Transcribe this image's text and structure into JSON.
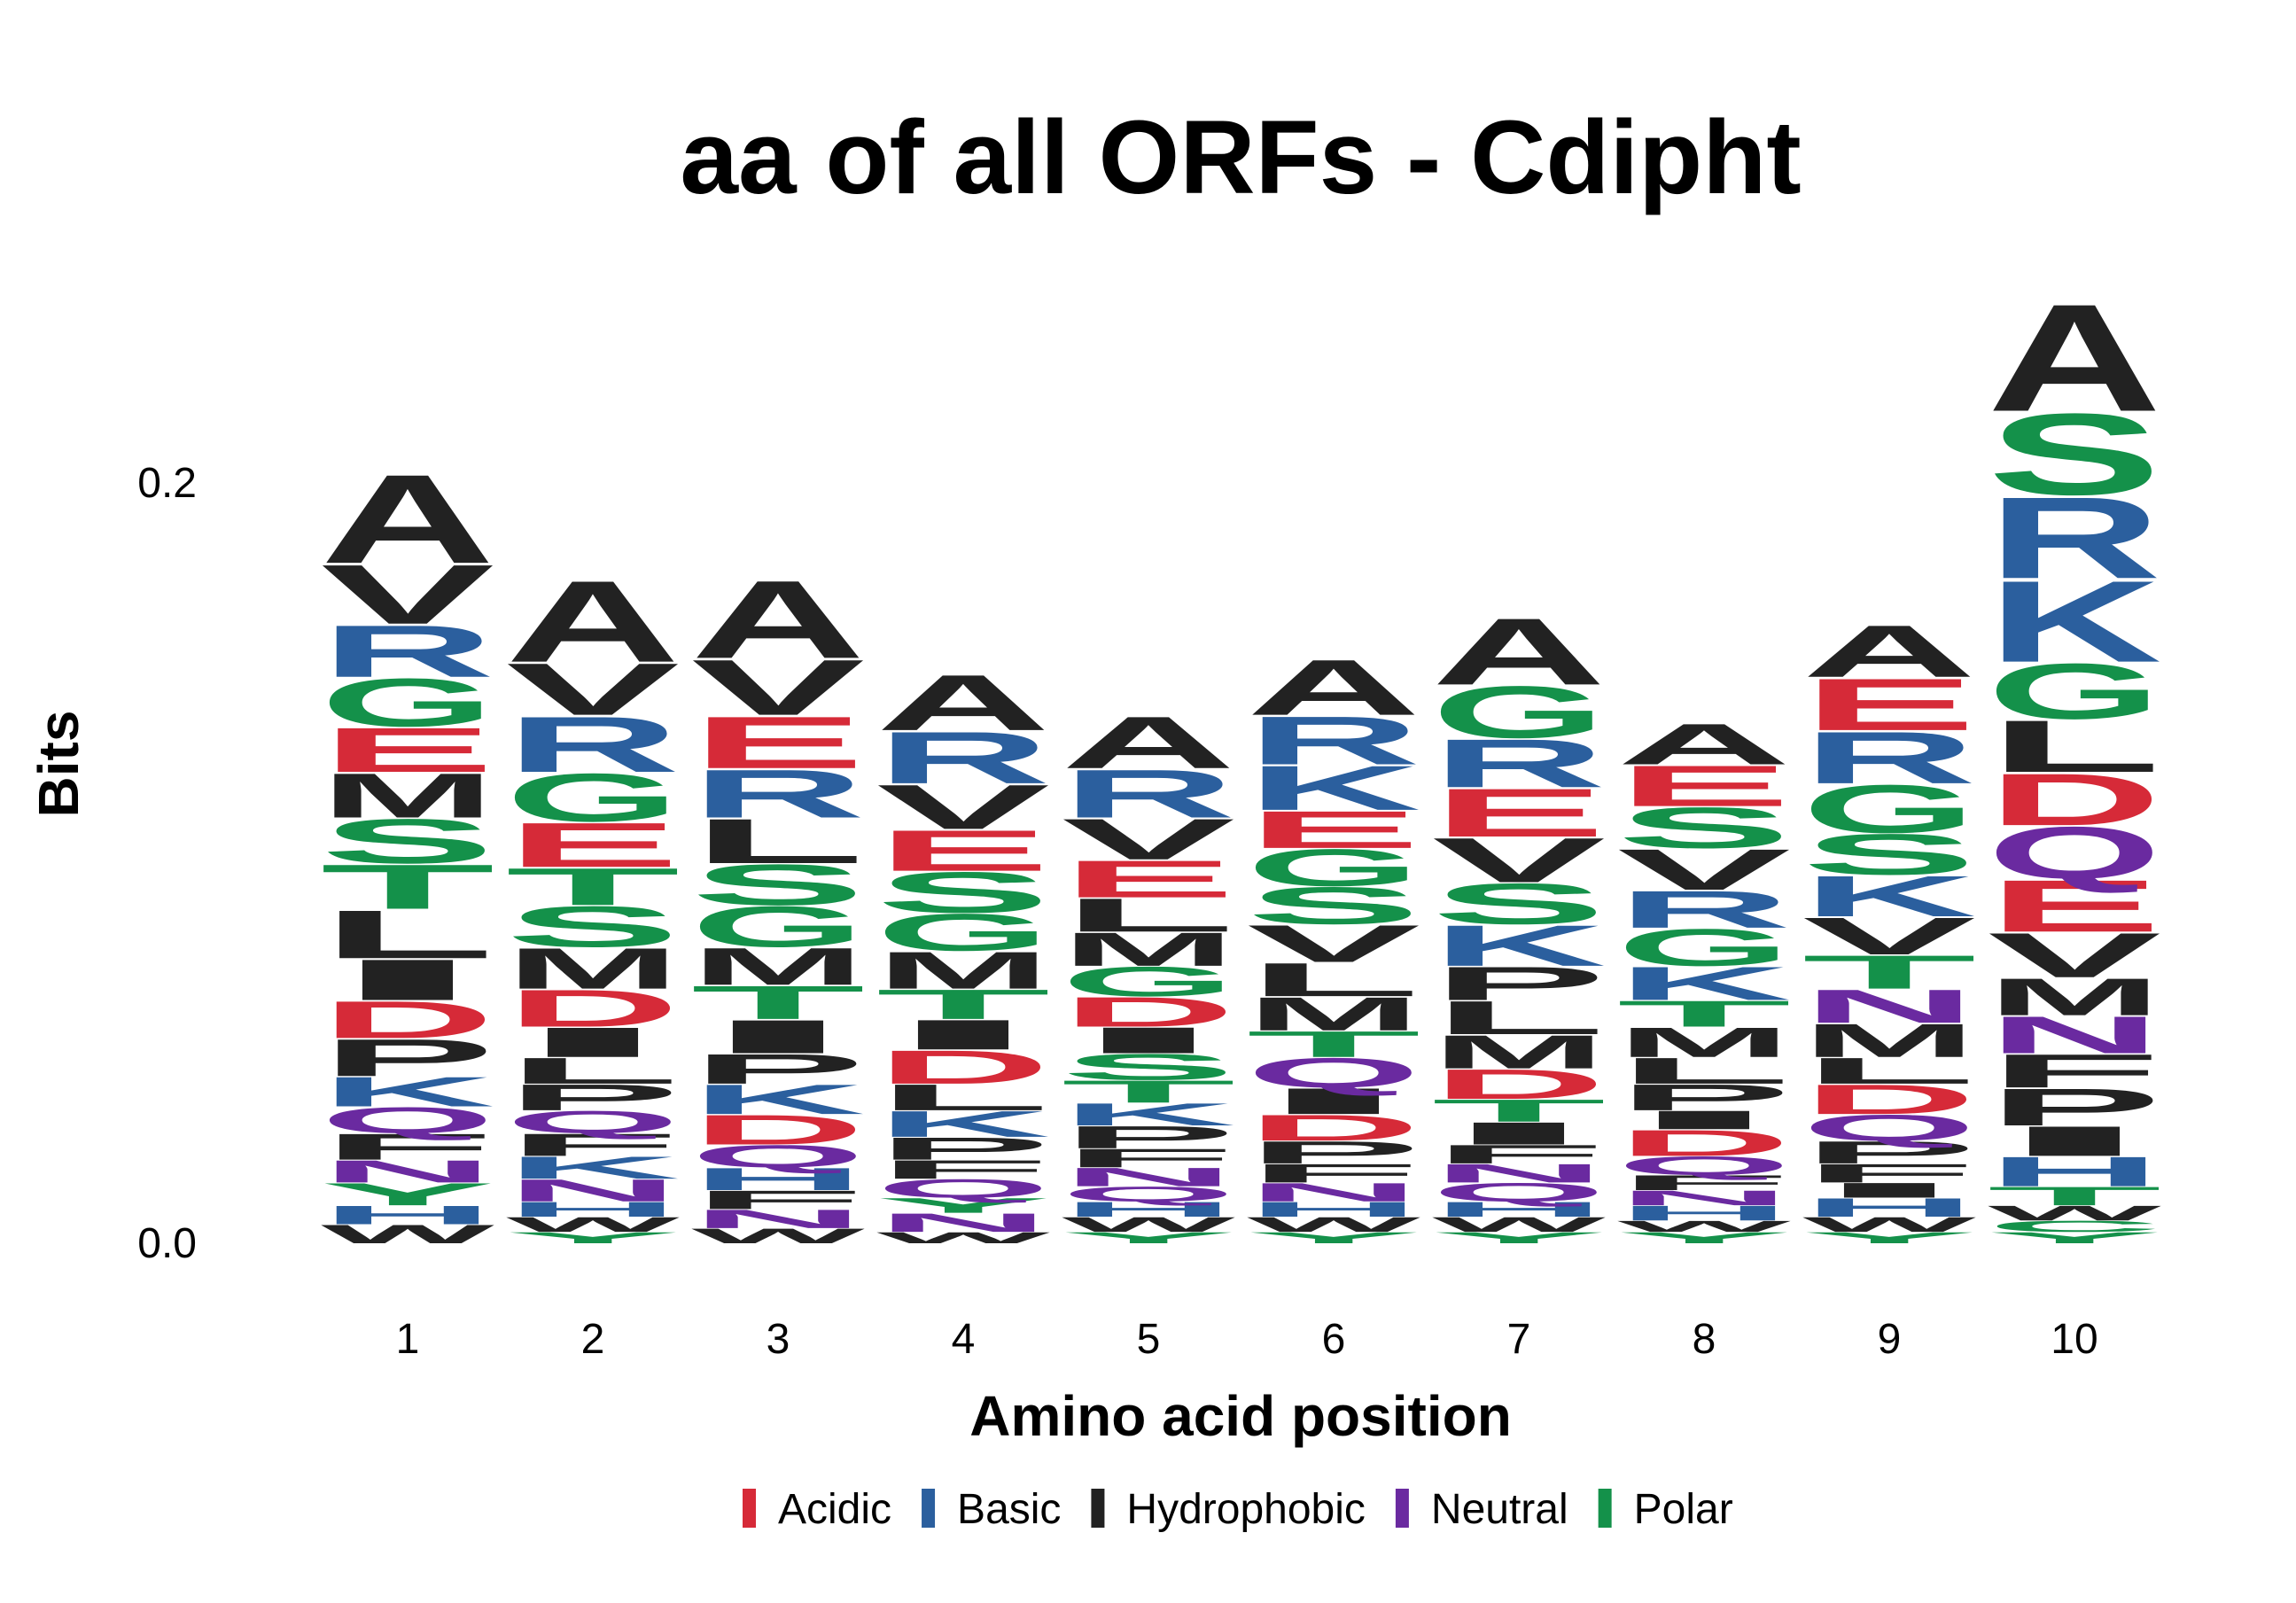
{
  "chart_data": {
    "type": "sequence-logo",
    "title": "aa of all ORFs - Cdipht",
    "xlabel": "Amino acid position",
    "ylabel": "Bits",
    "y_ticks": [
      "0.0",
      "0.2"
    ],
    "y_tick_values": [
      0.0,
      0.2
    ],
    "ylim": [
      0.0,
      0.2
    ],
    "x_tick_labels": [
      "1",
      "2",
      "3",
      "4",
      "5",
      "6",
      "7",
      "8",
      "9",
      "10"
    ],
    "grid": false,
    "legend_placement": "bottom",
    "legend": [
      {
        "name": "Acidic",
        "color": "#d62a38"
      },
      {
        "name": "Basic",
        "color": "#2b5f9e"
      },
      {
        "name": "Hydrophobic",
        "color": "#222222"
      },
      {
        "name": "Neutral",
        "color": "#6a2aa0"
      },
      {
        "name": "Polar",
        "color": "#14914a"
      }
    ],
    "class_of_letter": {
      "D": "Acidic",
      "E": "Acidic",
      "K": "Basic",
      "R": "Basic",
      "H": "Basic",
      "A": "Hydrophobic",
      "V": "Hydrophobic",
      "L": "Hydrophobic",
      "I": "Hydrophobic",
      "M": "Hydrophobic",
      "P": "Hydrophobic",
      "F": "Hydrophobic",
      "W": "Hydrophobic",
      "Q": "Neutral",
      "N": "Neutral",
      "S": "Polar",
      "G": "Polar",
      "T": "Polar",
      "Y": "Polar",
      "C": "Polar"
    },
    "positions": [
      {
        "position": "1",
        "letters": [
          {
            "aa": "W",
            "bits": 0.005
          },
          {
            "aa": "H",
            "bits": 0.005
          },
          {
            "aa": "Y",
            "bits": 0.006
          },
          {
            "aa": "N",
            "bits": 0.006
          },
          {
            "aa": "F",
            "bits": 0.007
          },
          {
            "aa": "Q",
            "bits": 0.007
          },
          {
            "aa": "K",
            "bits": 0.008
          },
          {
            "aa": "P",
            "bits": 0.01
          },
          {
            "aa": "D",
            "bits": 0.01
          },
          {
            "aa": "I",
            "bits": 0.011
          },
          {
            "aa": "L",
            "bits": 0.013
          },
          {
            "aa": "T",
            "bits": 0.012
          },
          {
            "aa": "S",
            "bits": 0.012
          },
          {
            "aa": "M",
            "bits": 0.012
          },
          {
            "aa": "E",
            "bits": 0.012
          },
          {
            "aa": "G",
            "bits": 0.013
          },
          {
            "aa": "R",
            "bits": 0.014
          },
          {
            "aa": "V",
            "bits": 0.016
          },
          {
            "aa": "A",
            "bits": 0.024
          }
        ]
      },
      {
        "position": "2",
        "letters": [
          {
            "aa": "Y",
            "bits": 0.003
          },
          {
            "aa": "W",
            "bits": 0.004
          },
          {
            "aa": "H",
            "bits": 0.004
          },
          {
            "aa": "N",
            "bits": 0.006
          },
          {
            "aa": "K",
            "bits": 0.006
          },
          {
            "aa": "F",
            "bits": 0.006
          },
          {
            "aa": "Q",
            "bits": 0.006
          },
          {
            "aa": "P",
            "bits": 0.007
          },
          {
            "aa": "L",
            "bits": 0.007
          },
          {
            "aa": "I",
            "bits": 0.008
          },
          {
            "aa": "D",
            "bits": 0.01
          },
          {
            "aa": "M",
            "bits": 0.011
          },
          {
            "aa": "S",
            "bits": 0.011
          },
          {
            "aa": "T",
            "bits": 0.01
          },
          {
            "aa": "E",
            "bits": 0.012
          },
          {
            "aa": "G",
            "bits": 0.013
          },
          {
            "aa": "R",
            "bits": 0.015
          },
          {
            "aa": "V",
            "bits": 0.014
          },
          {
            "aa": "A",
            "bits": 0.022
          }
        ]
      },
      {
        "position": "3",
        "letters": [
          {
            "aa": "W",
            "bits": 0.004
          },
          {
            "aa": "N",
            "bits": 0.005
          },
          {
            "aa": "F",
            "bits": 0.005
          },
          {
            "aa": "H",
            "bits": 0.006
          },
          {
            "aa": "Q",
            "bits": 0.006
          },
          {
            "aa": "D",
            "bits": 0.008
          },
          {
            "aa": "K",
            "bits": 0.008
          },
          {
            "aa": "P",
            "bits": 0.008
          },
          {
            "aa": "I",
            "bits": 0.009
          },
          {
            "aa": "T",
            "bits": 0.009
          },
          {
            "aa": "M",
            "bits": 0.01
          },
          {
            "aa": "G",
            "bits": 0.011
          },
          {
            "aa": "S",
            "bits": 0.011
          },
          {
            "aa": "L",
            "bits": 0.012
          },
          {
            "aa": "R",
            "bits": 0.013
          },
          {
            "aa": "E",
            "bits": 0.014
          },
          {
            "aa": "V",
            "bits": 0.015
          },
          {
            "aa": "A",
            "bits": 0.021
          }
        ]
      },
      {
        "position": "4",
        "letters": [
          {
            "aa": "W",
            "bits": 0.003
          },
          {
            "aa": "N",
            "bits": 0.005
          },
          {
            "aa": "Y",
            "bits": 0.004
          },
          {
            "aa": "Q",
            "bits": 0.005
          },
          {
            "aa": "F",
            "bits": 0.005
          },
          {
            "aa": "P",
            "bits": 0.006
          },
          {
            "aa": "K",
            "bits": 0.007
          },
          {
            "aa": "L",
            "bits": 0.007
          },
          {
            "aa": "D",
            "bits": 0.009
          },
          {
            "aa": "I",
            "bits": 0.008
          },
          {
            "aa": "T",
            "bits": 0.008
          },
          {
            "aa": "M",
            "bits": 0.01
          },
          {
            "aa": "G",
            "bits": 0.01
          },
          {
            "aa": "S",
            "bits": 0.011
          },
          {
            "aa": "E",
            "bits": 0.011
          },
          {
            "aa": "V",
            "bits": 0.012
          },
          {
            "aa": "R",
            "bits": 0.014
          },
          {
            "aa": "A",
            "bits": 0.015
          }
        ]
      },
      {
        "position": "5",
        "letters": [
          {
            "aa": "Y",
            "bits": 0.003
          },
          {
            "aa": "W",
            "bits": 0.004
          },
          {
            "aa": "H",
            "bits": 0.004
          },
          {
            "aa": "Q",
            "bits": 0.004
          },
          {
            "aa": "N",
            "bits": 0.005
          },
          {
            "aa": "F",
            "bits": 0.005
          },
          {
            "aa": "P",
            "bits": 0.006
          },
          {
            "aa": "K",
            "bits": 0.006
          },
          {
            "aa": "T",
            "bits": 0.006
          },
          {
            "aa": "S",
            "bits": 0.007
          },
          {
            "aa": "I",
            "bits": 0.007
          },
          {
            "aa": "D",
            "bits": 0.008
          },
          {
            "aa": "G",
            "bits": 0.008
          },
          {
            "aa": "M",
            "bits": 0.009
          },
          {
            "aa": "L",
            "bits": 0.009
          },
          {
            "aa": "E",
            "bits": 0.01
          },
          {
            "aa": "V",
            "bits": 0.011
          },
          {
            "aa": "R",
            "bits": 0.013
          },
          {
            "aa": "A",
            "bits": 0.014
          }
        ]
      },
      {
        "position": "6",
        "letters": [
          {
            "aa": "Y",
            "bits": 0.003
          },
          {
            "aa": "W",
            "bits": 0.004
          },
          {
            "aa": "H",
            "bits": 0.004
          },
          {
            "aa": "N",
            "bits": 0.005
          },
          {
            "aa": "F",
            "bits": 0.005
          },
          {
            "aa": "P",
            "bits": 0.006
          },
          {
            "aa": "D",
            "bits": 0.007
          },
          {
            "aa": "I",
            "bits": 0.007
          },
          {
            "aa": "Q",
            "bits": 0.008
          },
          {
            "aa": "T",
            "bits": 0.007
          },
          {
            "aa": "M",
            "bits": 0.009
          },
          {
            "aa": "L",
            "bits": 0.009
          },
          {
            "aa": "V",
            "bits": 0.01
          },
          {
            "aa": "S",
            "bits": 0.01
          },
          {
            "aa": "G",
            "bits": 0.01
          },
          {
            "aa": "E",
            "bits": 0.01
          },
          {
            "aa": "K",
            "bits": 0.012
          },
          {
            "aa": "R",
            "bits": 0.013
          },
          {
            "aa": "A",
            "bits": 0.015
          }
        ]
      },
      {
        "position": "7",
        "letters": [
          {
            "aa": "Y",
            "bits": 0.003
          },
          {
            "aa": "W",
            "bits": 0.004
          },
          {
            "aa": "H",
            "bits": 0.004
          },
          {
            "aa": "Q",
            "bits": 0.005
          },
          {
            "aa": "N",
            "bits": 0.005
          },
          {
            "aa": "F",
            "bits": 0.005
          },
          {
            "aa": "I",
            "bits": 0.006
          },
          {
            "aa": "T",
            "bits": 0.006
          },
          {
            "aa": "D",
            "bits": 0.008
          },
          {
            "aa": "M",
            "bits": 0.009
          },
          {
            "aa": "L",
            "bits": 0.009
          },
          {
            "aa": "P",
            "bits": 0.009
          },
          {
            "aa": "K",
            "bits": 0.011
          },
          {
            "aa": "S",
            "bits": 0.011
          },
          {
            "aa": "V",
            "bits": 0.012
          },
          {
            "aa": "E",
            "bits": 0.013
          },
          {
            "aa": "R",
            "bits": 0.013
          },
          {
            "aa": "G",
            "bits": 0.014
          },
          {
            "aa": "A",
            "bits": 0.018
          }
        ]
      },
      {
        "position": "8",
        "letters": [
          {
            "aa": "Y",
            "bits": 0.003
          },
          {
            "aa": "W",
            "bits": 0.003
          },
          {
            "aa": "H",
            "bits": 0.004
          },
          {
            "aa": "N",
            "bits": 0.004
          },
          {
            "aa": "F",
            "bits": 0.004
          },
          {
            "aa": "Q",
            "bits": 0.005
          },
          {
            "aa": "D",
            "bits": 0.007
          },
          {
            "aa": "I",
            "bits": 0.005
          },
          {
            "aa": "P",
            "bits": 0.007
          },
          {
            "aa": "L",
            "bits": 0.007
          },
          {
            "aa": "M",
            "bits": 0.008
          },
          {
            "aa": "T",
            "bits": 0.007
          },
          {
            "aa": "K",
            "bits": 0.009
          },
          {
            "aa": "G",
            "bits": 0.01
          },
          {
            "aa": "R",
            "bits": 0.01
          },
          {
            "aa": "V",
            "bits": 0.011
          },
          {
            "aa": "S",
            "bits": 0.011
          },
          {
            "aa": "E",
            "bits": 0.011
          },
          {
            "aa": "A",
            "bits": 0.011
          }
        ]
      },
      {
        "position": "9",
        "letters": [
          {
            "aa": "Y",
            "bits": 0.003
          },
          {
            "aa": "W",
            "bits": 0.004
          },
          {
            "aa": "H",
            "bits": 0.005
          },
          {
            "aa": "I",
            "bits": 0.004
          },
          {
            "aa": "F",
            "bits": 0.005
          },
          {
            "aa": "P",
            "bits": 0.006
          },
          {
            "aa": "Q",
            "bits": 0.007
          },
          {
            "aa": "D",
            "bits": 0.008
          },
          {
            "aa": "L",
            "bits": 0.007
          },
          {
            "aa": "M",
            "bits": 0.009
          },
          {
            "aa": "N",
            "bits": 0.009
          },
          {
            "aa": "T",
            "bits": 0.009
          },
          {
            "aa": "V",
            "bits": 0.01
          },
          {
            "aa": "K",
            "bits": 0.011
          },
          {
            "aa": "S",
            "bits": 0.011
          },
          {
            "aa": "G",
            "bits": 0.013
          },
          {
            "aa": "R",
            "bits": 0.014
          },
          {
            "aa": "E",
            "bits": 0.014
          },
          {
            "aa": "A",
            "bits": 0.014
          }
        ]
      },
      {
        "position": "10",
        "letters": [
          {
            "aa": "Y",
            "bits": 0.003
          },
          {
            "aa": "C",
            "bits": 0.003
          },
          {
            "aa": "W",
            "bits": 0.004
          },
          {
            "aa": "T",
            "bits": 0.005
          },
          {
            "aa": "H",
            "bits": 0.008
          },
          {
            "aa": "I",
            "bits": 0.008
          },
          {
            "aa": "P",
            "bits": 0.01
          },
          {
            "aa": "F",
            "bits": 0.009
          },
          {
            "aa": "N",
            "bits": 0.01
          },
          {
            "aa": "M",
            "bits": 0.01
          },
          {
            "aa": "V",
            "bits": 0.012
          },
          {
            "aa": "E",
            "bits": 0.014
          },
          {
            "aa": "Q",
            "bits": 0.014
          },
          {
            "aa": "D",
            "bits": 0.014
          },
          {
            "aa": "L",
            "bits": 0.014
          },
          {
            "aa": "G",
            "bits": 0.015
          },
          {
            "aa": "K",
            "bits": 0.022
          },
          {
            "aa": "R",
            "bits": 0.022
          },
          {
            "aa": "S",
            "bits": 0.022
          },
          {
            "aa": "A",
            "bits": 0.029
          }
        ]
      }
    ]
  }
}
